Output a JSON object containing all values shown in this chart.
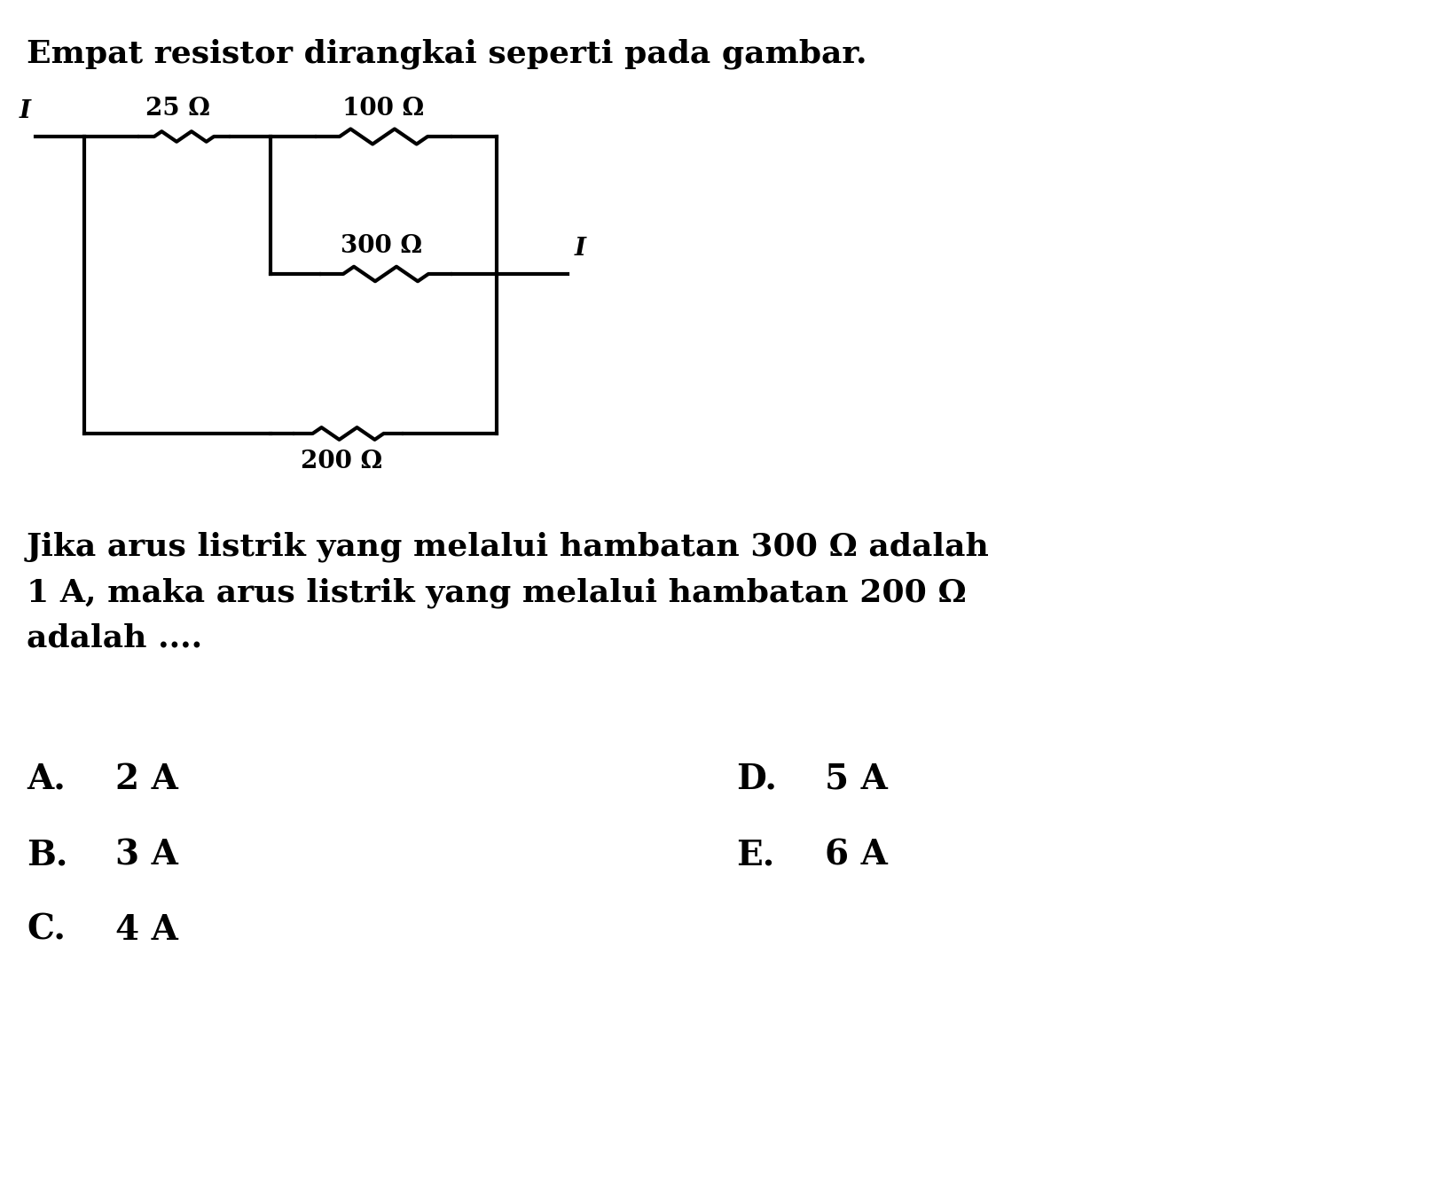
{
  "title": "Empat resistor dirangkai seperti pada gambar.",
  "title_fontsize": 26,
  "label_fontsize": 20,
  "body_fontsize": 26,
  "options_fontsize": 28,
  "background_color": "#ffffff",
  "text_color": "#000000",
  "line_color": "#000000",
  "line_width": 3.0,
  "question_text_line1": "Jika arus listrik yang melalui hambatan 300 Ω adalah",
  "question_text_line2": "1 A, maka arus listrik yang melalui hambatan 200 Ω",
  "question_text_line3": "adalah ....",
  "R25_label": "25 Ω",
  "R100_label": "100 Ω",
  "R300_label": "300 Ω",
  "R200_label": "200 Ω",
  "I_label": "I",
  "options_col0": [
    {
      "label": "A.",
      "value": "2 A"
    },
    {
      "label": "B.",
      "value": "3 A"
    },
    {
      "label": "C.",
      "value": "4 A"
    }
  ],
  "options_col1": [
    {
      "label": "D.",
      "value": "5 A"
    },
    {
      "label": "E.",
      "value": "6 A"
    }
  ]
}
